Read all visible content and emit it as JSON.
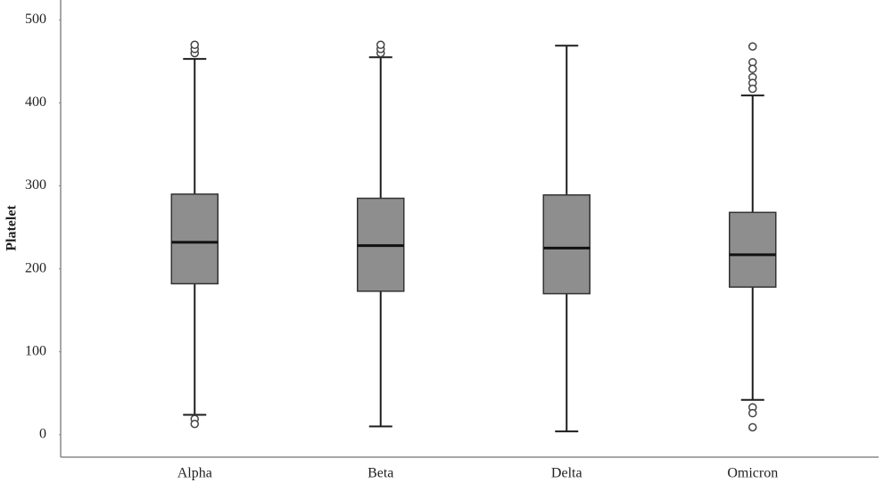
{
  "chart_data": {
    "type": "box",
    "y_label": "Platelet",
    "categories": [
      "Alpha",
      "Beta",
      "Delta",
      "Omicron"
    ],
    "boxes": [
      {
        "min": 24,
        "q1": 182,
        "median": 232,
        "q3": 290,
        "max": 453,
        "outliers": [
          19,
          13,
          460,
          465,
          470
        ]
      },
      {
        "min": 10,
        "q1": 173,
        "median": 228,
        "q3": 285,
        "max": 455,
        "outliers": [
          460,
          465,
          470
        ]
      },
      {
        "min": 4,
        "q1": 170,
        "median": 225,
        "q3": 289,
        "max": 469,
        "outliers": []
      },
      {
        "min": 42,
        "q1": 178,
        "median": 217,
        "q3": 268,
        "max": 409,
        "outliers": [
          468,
          449,
          441,
          431,
          424,
          417,
          33,
          26,
          9
        ]
      }
    ],
    "color": "#8e8e8e",
    "ylim": [
      -27,
      524
    ],
    "yticks": [
      0,
      100,
      200,
      300,
      400,
      500
    ]
  }
}
